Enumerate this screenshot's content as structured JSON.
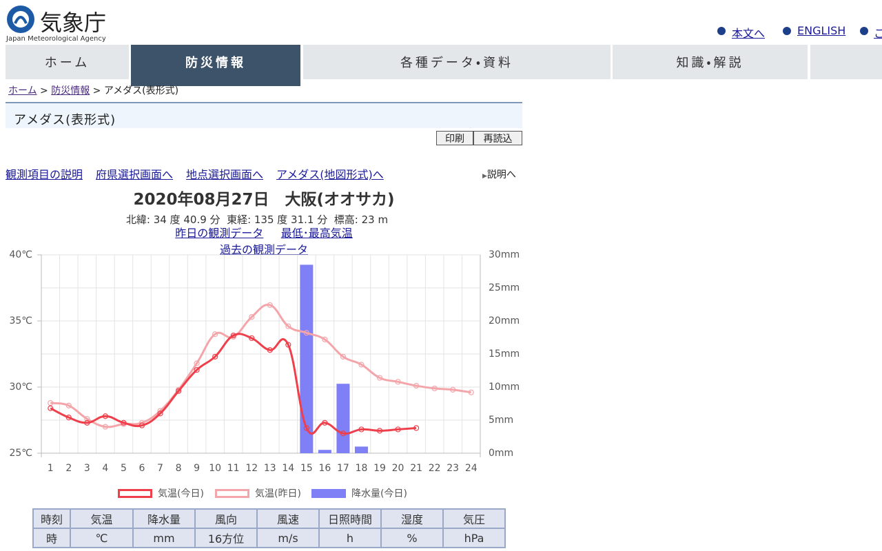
{
  "header": {
    "logo_title": "気象庁",
    "logo_subtitle": "Japan Meteorological Agency",
    "links": [
      "本文へ",
      "ENGLISH",
      "こ"
    ]
  },
  "nav": [
    "ホーム",
    "防災情報",
    "各種データ・資料",
    "知識・解説"
  ],
  "breadcrumb": [
    "ホーム",
    "防災情報",
    "アメダス(表形式)"
  ],
  "section_title": "アメダス(表形式)",
  "buttons": [
    "印刷",
    "再読込"
  ],
  "links": [
    "観測項目の説明",
    "府県選択画面へ",
    "地点選択画面へ",
    "アメダス(地図形式)へ"
  ],
  "help_link": "説明へ",
  "station_links": [
    "昨日の観測データ",
    "最低･最高気温",
    "過去の観測データ"
  ],
  "chart_data": {
    "type": "line",
    "title": "2020年08月27日　大阪(オオサカ)",
    "subtitle": "北緯: 34 度 40.9 分  東経: 135 度 31.1 分  標高: 23 m",
    "categories": [
      "1",
      "2",
      "3",
      "4",
      "5",
      "6",
      "7",
      "8",
      "9",
      "10",
      "11",
      "12",
      "13",
      "14",
      "15",
      "16",
      "17",
      "18",
      "19",
      "20",
      "21",
      "22",
      "23",
      "24"
    ],
    "series": [
      {
        "name": "気温(今日)",
        "type": "line",
        "color": "#ee3f4b",
        "values": [
          28.4,
          27.7,
          27.3,
          27.8,
          27.3,
          27.1,
          28.0,
          29.7,
          31.3,
          32.3,
          33.9,
          33.7,
          32.8,
          33.2,
          26.9,
          27.3,
          26.5,
          26.8,
          26.7,
          26.8,
          26.9,
          null,
          null,
          null
        ]
      },
      {
        "name": "気温(昨日)",
        "type": "line",
        "color": "#f4a5aa",
        "values": [
          28.8,
          28.6,
          27.6,
          27.0,
          27.2,
          27.3,
          28.2,
          29.8,
          31.8,
          34.0,
          33.8,
          35.3,
          36.2,
          34.6,
          34.1,
          33.6,
          32.3,
          31.7,
          30.7,
          30.4,
          30.1,
          29.9,
          29.8,
          29.6
        ]
      },
      {
        "name": "降水量(今日)",
        "type": "bar",
        "axis": "y2",
        "color": "#7f7ff6",
        "values": [
          0,
          0,
          0,
          0,
          0,
          0,
          0,
          0,
          0,
          0,
          0,
          0,
          0,
          0,
          28.5,
          0.5,
          10.5,
          1.0,
          0,
          0,
          0,
          null,
          null,
          null
        ]
      }
    ],
    "ylim": [
      25,
      40
    ],
    "yticks": [
      {
        "value": 25,
        "label": "25℃"
      },
      {
        "value": 30,
        "label": "30℃"
      },
      {
        "value": 35,
        "label": "35℃"
      },
      {
        "value": 40,
        "label": "40℃"
      }
    ],
    "y2lim": [
      0,
      30
    ],
    "y2ticks": [
      {
        "value": 0,
        "label": "0mm"
      },
      {
        "value": 5,
        "label": "5mm"
      },
      {
        "value": 10,
        "label": "10mm"
      },
      {
        "value": 15,
        "label": "15mm"
      },
      {
        "value": 20,
        "label": "20mm"
      },
      {
        "value": 25,
        "label": "25mm"
      },
      {
        "value": 30,
        "label": "30mm"
      }
    ],
    "grid": true
  },
  "table": {
    "header": [
      "時刻",
      "気温",
      "降水量",
      "風向",
      "風速",
      "日照時間",
      "湿度",
      "気圧"
    ],
    "units": [
      "時",
      "℃",
      "mm",
      "16方位",
      "m/s",
      "h",
      "%",
      "hPa"
    ]
  }
}
